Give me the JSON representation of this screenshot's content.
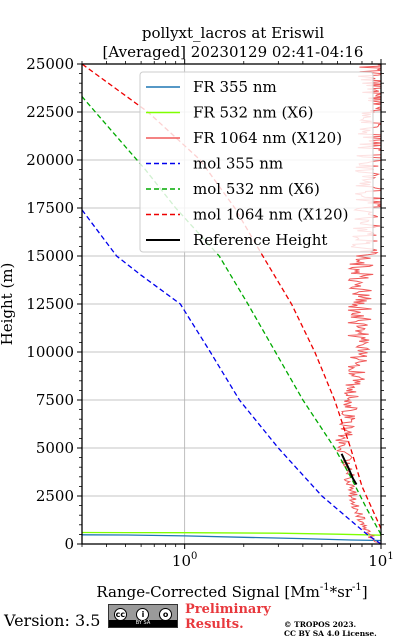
{
  "chart_data": {
    "type": "line",
    "title": "pollyxt_lacros at Eriswil",
    "subtitle": "[Averaged] 20230129 02:41-04:16",
    "xlabel": "Range-Corrected Signal [Mm",
    "xlabel_sup1": "-1",
    "xlabel_mid": "*sr",
    "xlabel_sup2": "-1",
    "xlabel_end": "]",
    "ylabel": "Height (m)",
    "xscale": "log",
    "xlim": [
      0.3,
      10
    ],
    "ylim": [
      0,
      25000
    ],
    "grid": true,
    "legend_position": "upper-right",
    "x_tick_labels": [
      {
        "value": 1,
        "base": "10",
        "exp": "0"
      },
      {
        "value": 10,
        "base": "10",
        "exp": "1"
      }
    ],
    "y_ticks": [
      0,
      2500,
      5000,
      7500,
      10000,
      12500,
      15000,
      17500,
      20000,
      22500,
      25000
    ],
    "series": [
      {
        "name": "FR 355 nm",
        "color": "#1f77b4",
        "style": "solid",
        "points": [
          [
            0.3,
            480
          ],
          [
            0.5,
            470
          ],
          [
            1.0,
            420
          ],
          [
            2.0,
            350
          ],
          [
            4.0,
            280
          ],
          [
            7.0,
            210
          ],
          [
            10.0,
            180
          ]
        ]
      },
      {
        "name": "FR 532 nm (X6)",
        "color": "#7fff00",
        "style": "solid",
        "points": [
          [
            0.3,
            600
          ],
          [
            1.0,
            590
          ],
          [
            3.0,
            560
          ],
          [
            6.0,
            510
          ],
          [
            10.0,
            460
          ]
        ]
      },
      {
        "name": "FR 1064 nm (X120)",
        "color": "#f05a5a",
        "style": "noisy",
        "points": [
          [
            10.0,
            0
          ],
          [
            9.0,
            300
          ],
          [
            8.2,
            1000
          ],
          [
            7.3,
            2000
          ],
          [
            7.2,
            2500
          ],
          [
            6.9,
            3500
          ],
          [
            6.6,
            4500
          ],
          [
            6.3,
            5200
          ],
          [
            6.7,
            6000
          ],
          [
            7.0,
            7000
          ],
          [
            7.3,
            8000
          ],
          [
            7.6,
            9000
          ],
          [
            7.7,
            10000
          ],
          [
            7.6,
            11000
          ],
          [
            7.8,
            12000
          ],
          [
            7.9,
            13000
          ],
          [
            8.0,
            14000
          ],
          [
            8.2,
            15000
          ],
          [
            8.1,
            16000
          ],
          [
            8.5,
            17000
          ],
          [
            8.8,
            18000
          ],
          [
            9.0,
            19000
          ],
          [
            9.3,
            20000
          ],
          [
            9.5,
            21000
          ],
          [
            9.6,
            22000
          ],
          [
            9.7,
            23000
          ],
          [
            9.8,
            24000
          ],
          [
            10.0,
            25000
          ]
        ]
      },
      {
        "name": "mol 355 nm",
        "color": "#0000ee",
        "style": "dashed",
        "points": [
          [
            10.0,
            0
          ],
          [
            8.5,
            500
          ],
          [
            5.0,
            2500
          ],
          [
            3.0,
            5000
          ],
          [
            1.9,
            7500
          ],
          [
            1.35,
            10000
          ],
          [
            0.95,
            12500
          ],
          [
            0.6,
            14000
          ],
          [
            0.45,
            15000
          ],
          [
            0.3,
            17400
          ]
        ]
      },
      {
        "name": "mol 532 nm (X6)",
        "color": "#00aa00",
        "style": "dashed",
        "points": [
          [
            10.0,
            500
          ],
          [
            8.5,
            1800
          ],
          [
            7.0,
            3500
          ],
          [
            5.8,
            5000
          ],
          [
            4.0,
            7500
          ],
          [
            2.9,
            10000
          ],
          [
            2.1,
            12500
          ],
          [
            1.5,
            15000
          ],
          [
            0.9,
            17500
          ],
          [
            0.63,
            19500
          ],
          [
            0.47,
            21000
          ],
          [
            0.3,
            23300
          ]
        ]
      },
      {
        "name": "mol 1064 nm (X120)",
        "color": "#ee0000",
        "style": "dashed",
        "points": [
          [
            10.0,
            800
          ],
          [
            8.0,
            3000
          ],
          [
            7.0,
            5000
          ],
          [
            5.8,
            7500
          ],
          [
            4.6,
            10000
          ],
          [
            3.5,
            12500
          ],
          [
            2.5,
            15000
          ],
          [
            1.8,
            17500
          ],
          [
            1.2,
            20000
          ],
          [
            0.65,
            22500
          ],
          [
            0.3,
            25000
          ]
        ]
      },
      {
        "name": "Reference Height",
        "color": "#000000",
        "style": "solid-thick",
        "points": [
          [
            6.3,
            4700
          ],
          [
            6.5,
            4400
          ],
          [
            6.8,
            4000
          ],
          [
            7.0,
            3700
          ],
          [
            7.2,
            3400
          ],
          [
            7.5,
            3100
          ]
        ]
      }
    ]
  },
  "footer": {
    "version": "Version: 3.5",
    "cc_top": "cc (i) (o)",
    "cc_bottom": "BY  SA",
    "preliminary": "Preliminary",
    "results": "Results.",
    "copyright_line1": "© TROPOS 2023.",
    "copyright_line2": "CC BY SA 4.0 License."
  }
}
